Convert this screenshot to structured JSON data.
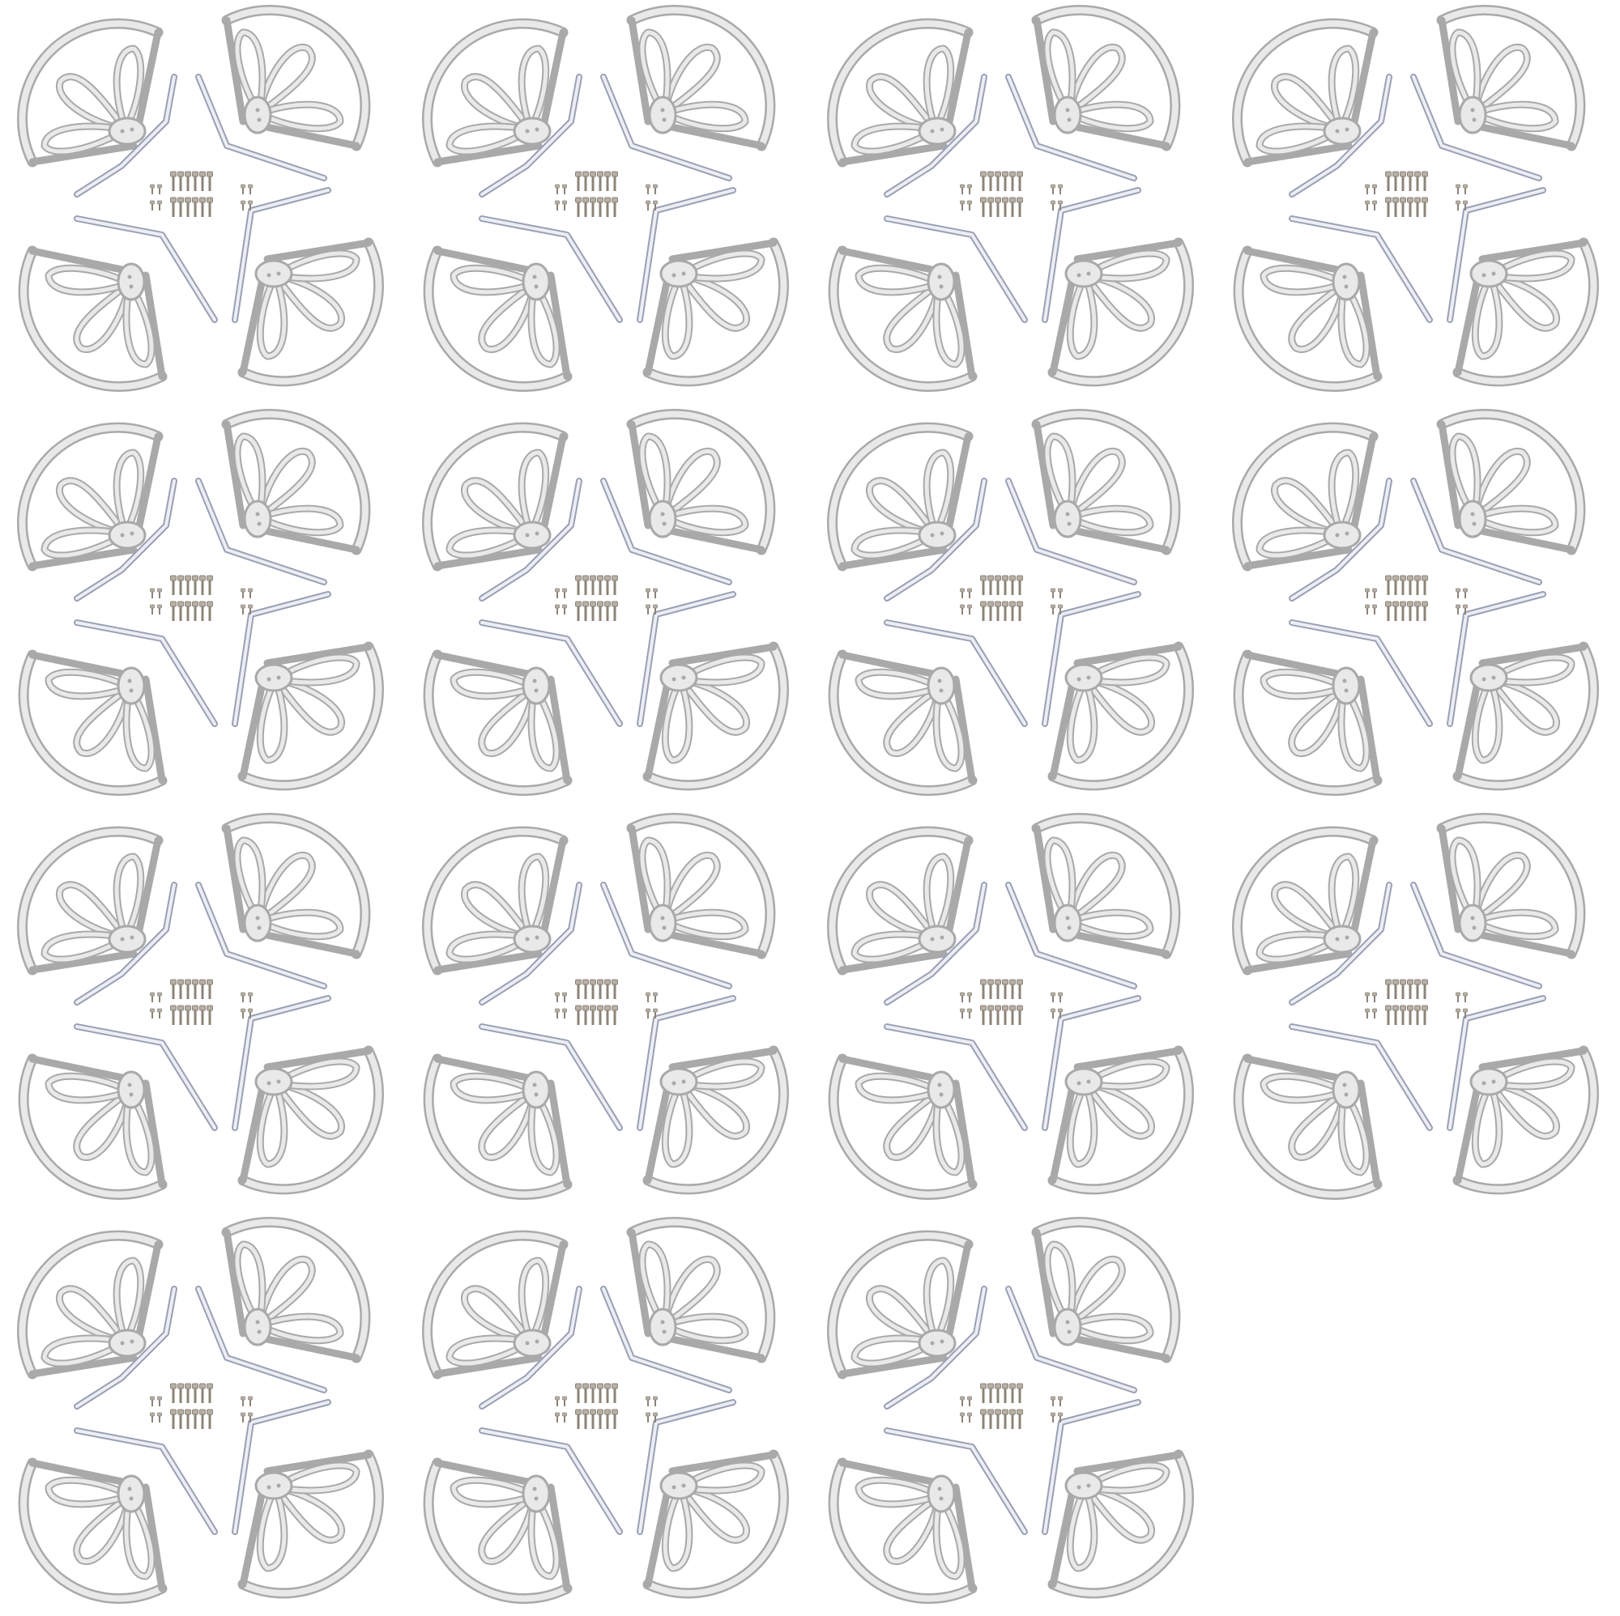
{
  "scene": {
    "kit_count": 15,
    "columns": 4,
    "guards_per_kit": 4,
    "legs_per_kit": 4,
    "colors": {
      "background": "#ffffff",
      "guard_fill": "#e9e9e9",
      "guard_stroke": "#a9a9a9",
      "leg_fill": "#eceef4",
      "leg_stroke": "#9aa0b4",
      "screw": "#8c8478",
      "screw_head": "#b7b0a6"
    }
  }
}
